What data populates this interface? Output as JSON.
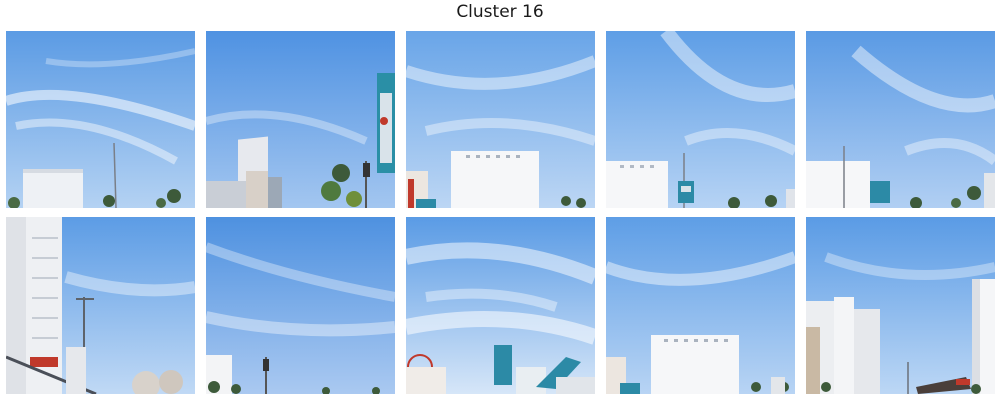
{
  "title": "Cluster 16",
  "tiles": [
    {
      "row": 1,
      "col": 1,
      "description": "sky-with-wispy-clouds-white-hotel-bottom-left"
    },
    {
      "row": 1,
      "col": 2,
      "description": "sky-with-billboards-and-sign-right"
    },
    {
      "row": 1,
      "col": 3,
      "description": "sky-with-white-tower-billboard-center"
    },
    {
      "row": 1,
      "col": 4,
      "description": "sky-with-white-building-left-and-teal-sign"
    },
    {
      "row": 1,
      "col": 5,
      "description": "sky-with-white-building-left"
    },
    {
      "row": 2,
      "col": 1,
      "description": "tall-hotel-left-with-lamp-posts"
    },
    {
      "row": 2,
      "col": 2,
      "description": "sky-with-clouds-small-buildings-bottom"
    },
    {
      "row": 2,
      "col": 3,
      "description": "bright-clouds-colorful-sign-bottom"
    },
    {
      "row": 2,
      "col": 4,
      "description": "sky-with-white-building-center-bottom"
    },
    {
      "row": 2,
      "col": 5,
      "description": "white-towers-and-monorail-right"
    }
  ],
  "colors": {
    "sky_top": "#5f9fe6",
    "sky_bottom": "#a9cbf2",
    "cloud": "#ffffff",
    "building": "#f2f3f5",
    "palm": "#3d5a3a",
    "teal": "#2c8aa6"
  }
}
